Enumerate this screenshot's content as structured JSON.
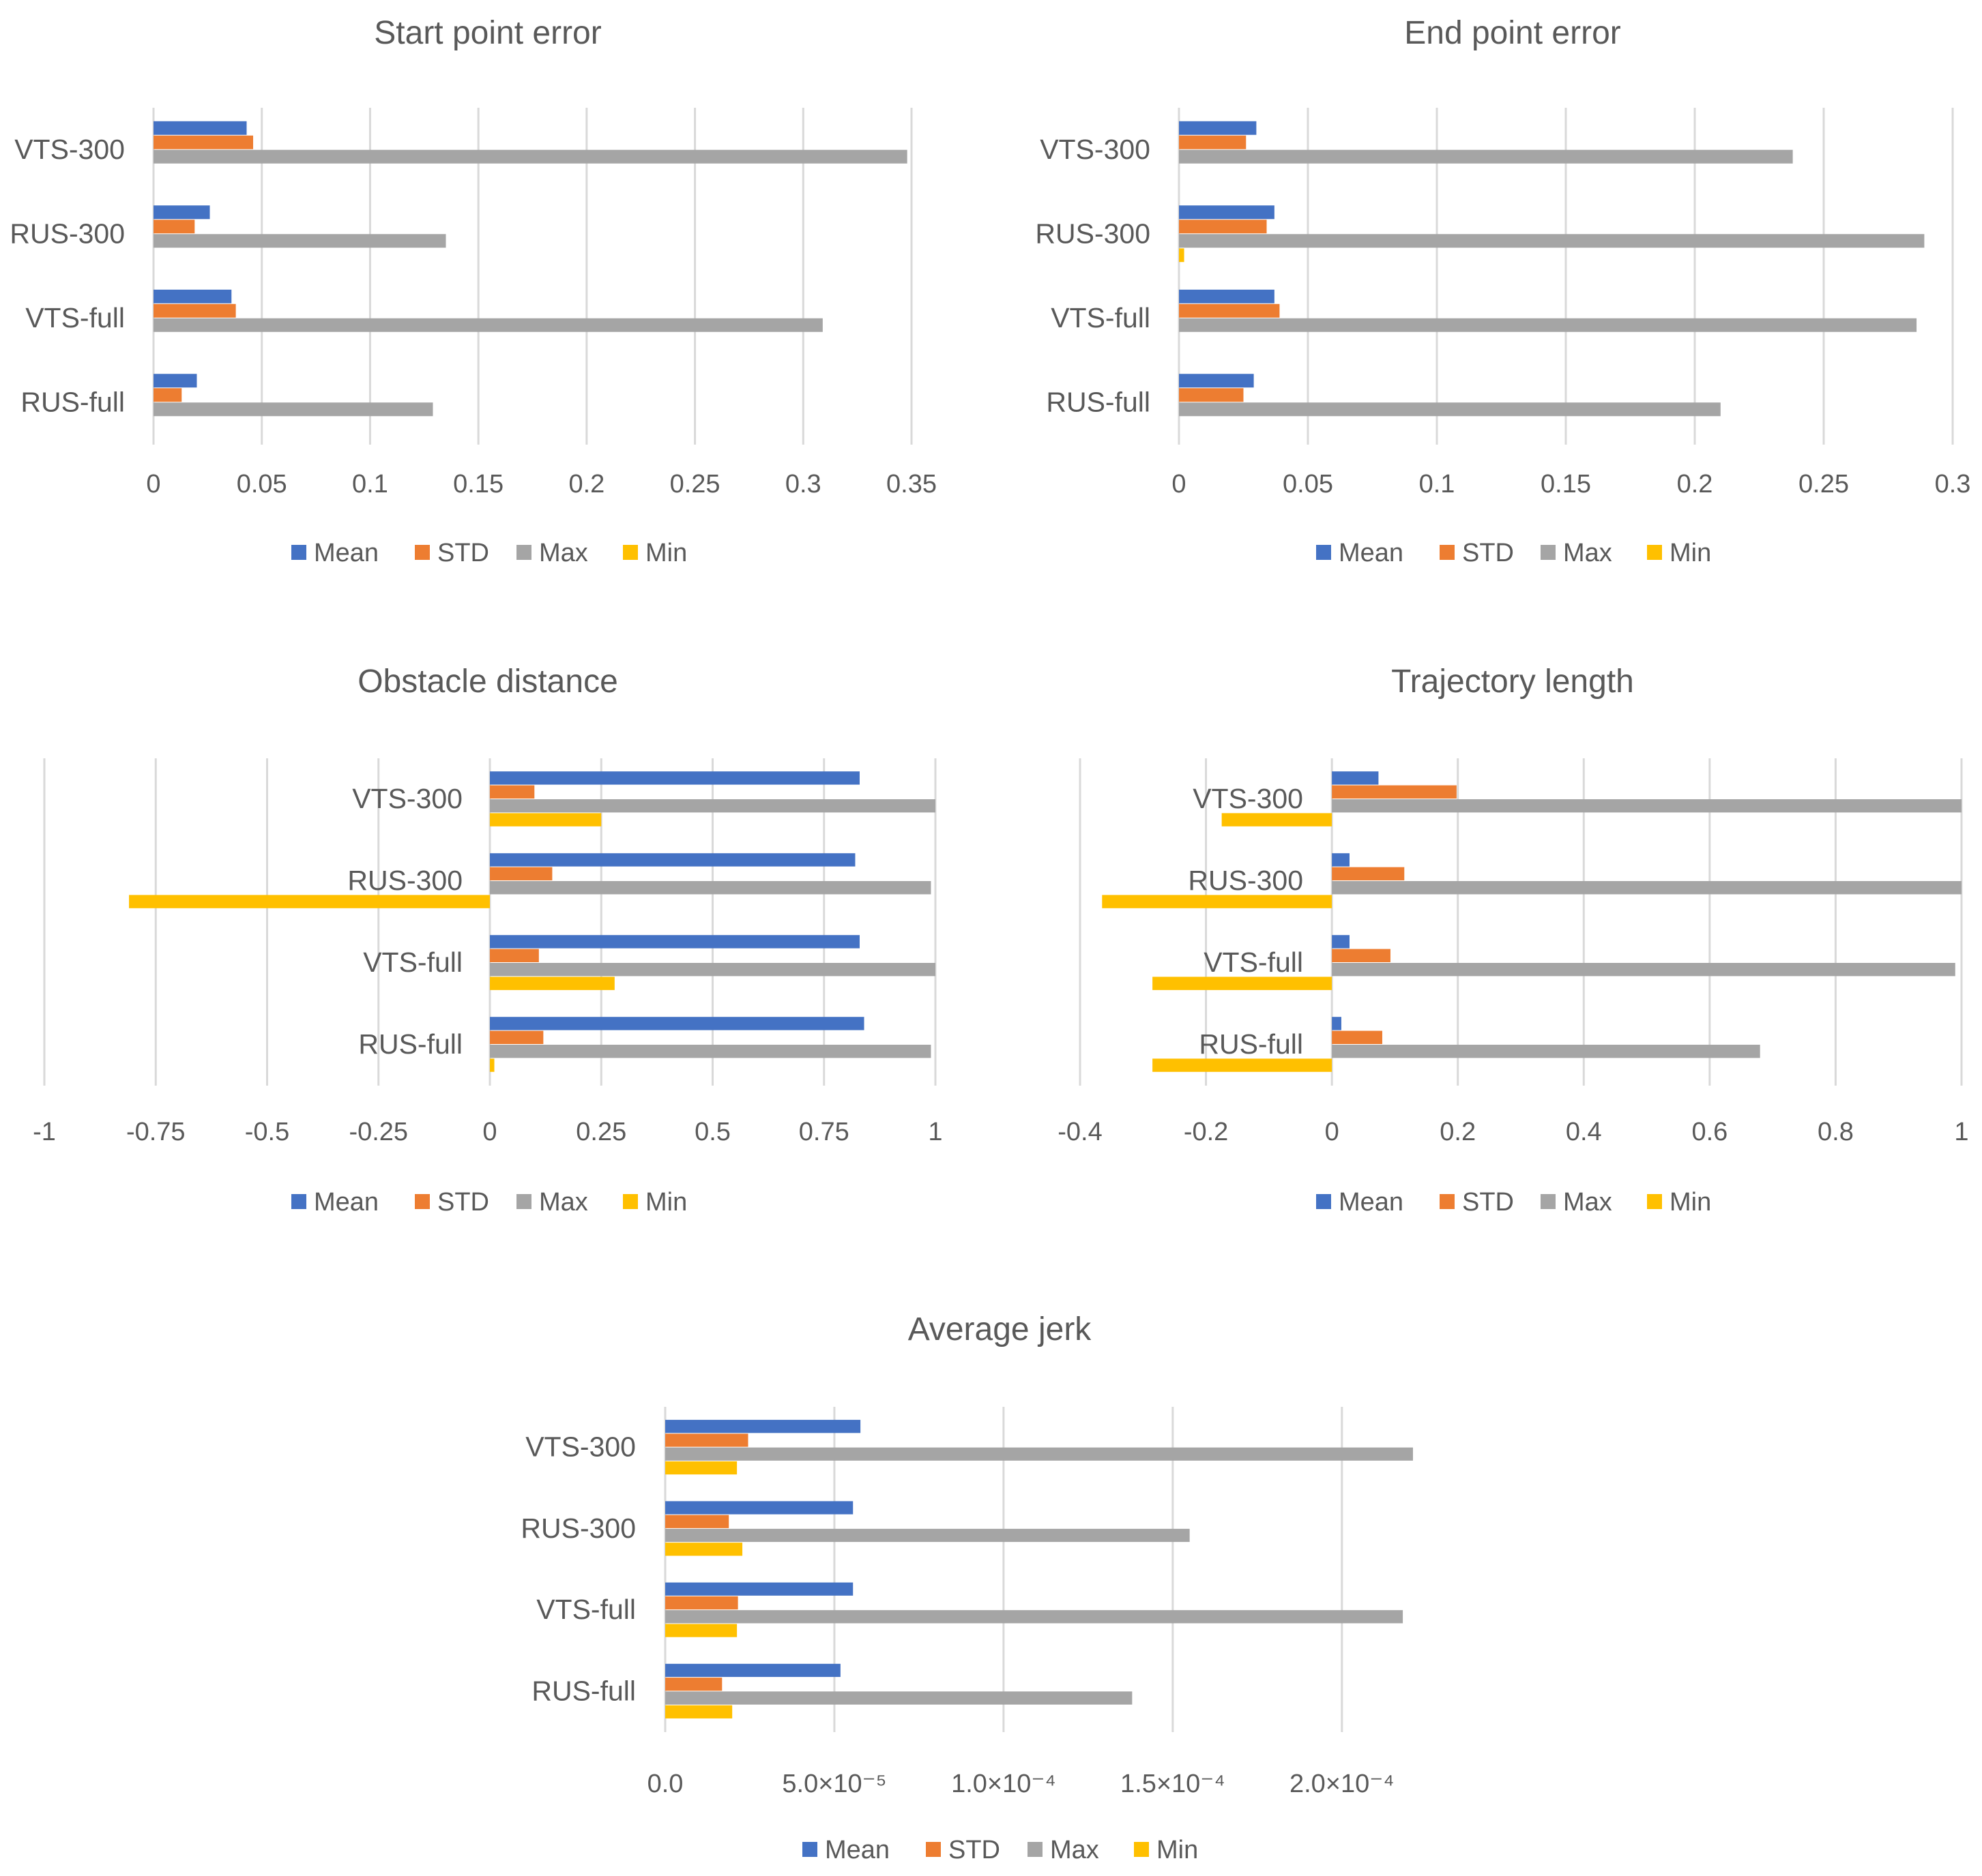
{
  "colors": {
    "Mean": "#4472C4",
    "STD": "#ED7D31",
    "Max": "#A5A5A5",
    "Min": "#FFC000",
    "grid": "#D9D9D9",
    "text": "#595959"
  },
  "legend": [
    "Mean",
    "STD",
    "Max",
    "Min"
  ],
  "chart_data": [
    {
      "type": "bar",
      "orientation": "horizontal",
      "title": "Start point error",
      "categories": [
        "VTS-300",
        "RUS-300",
        "VTS-full",
        "RUS-full"
      ],
      "xlim": [
        0,
        0.35
      ],
      "ticks": [
        0,
        0.05,
        0.1,
        0.15,
        0.2,
        0.25,
        0.3,
        0.35
      ],
      "tick_labels": [
        "0",
        "0.05",
        "0.1",
        "0.15",
        "0.2",
        "0.25",
        "0.3",
        "0.35"
      ],
      "series": [
        {
          "name": "Mean",
          "values": [
            0.043,
            0.026,
            0.036,
            0.02
          ]
        },
        {
          "name": "STD",
          "values": [
            0.046,
            0.019,
            0.038,
            0.013
          ]
        },
        {
          "name": "Max",
          "values": [
            0.348,
            0.135,
            0.309,
            0.129
          ]
        },
        {
          "name": "Min",
          "values": [
            0,
            0,
            0,
            0
          ]
        }
      ],
      "legend_position": "bottom",
      "grid": true
    },
    {
      "type": "bar",
      "orientation": "horizontal",
      "title": "End point error",
      "categories": [
        "VTS-300",
        "RUS-300",
        "VTS-full",
        "RUS-full"
      ],
      "xlim": [
        0,
        0.3
      ],
      "ticks": [
        0,
        0.05,
        0.1,
        0.15,
        0.2,
        0.25,
        0.3
      ],
      "tick_labels": [
        "0",
        "0.05",
        "0.1",
        "0.15",
        "0.2",
        "0.25",
        "0.3"
      ],
      "series": [
        {
          "name": "Mean",
          "values": [
            0.03,
            0.037,
            0.037,
            0.029
          ]
        },
        {
          "name": "STD",
          "values": [
            0.026,
            0.034,
            0.039,
            0.025
          ]
        },
        {
          "name": "Max",
          "values": [
            0.238,
            0.289,
            0.286,
            0.21
          ]
        },
        {
          "name": "Min",
          "values": [
            0,
            0.002,
            0,
            0
          ]
        }
      ],
      "legend_position": "bottom",
      "grid": true
    },
    {
      "type": "bar",
      "orientation": "horizontal",
      "title": "Obstacle distance",
      "categories": [
        "VTS-300",
        "RUS-300",
        "VTS-full",
        "RUS-full"
      ],
      "xlim": [
        -1,
        1
      ],
      "ticks": [
        -1,
        -0.75,
        -0.5,
        -0.25,
        0,
        0.25,
        0.5,
        0.75,
        1
      ],
      "tick_labels": [
        "-1",
        "-0.75",
        "-0.5",
        "-0.25",
        "0",
        "0.25",
        "0.5",
        "0.75",
        "1"
      ],
      "series": [
        {
          "name": "Mean",
          "values": [
            0.83,
            0.82,
            0.83,
            0.84
          ]
        },
        {
          "name": "STD",
          "values": [
            0.1,
            0.14,
            0.11,
            0.12
          ]
        },
        {
          "name": "Max",
          "values": [
            1.0,
            0.99,
            1.0,
            0.99
          ]
        },
        {
          "name": "Min",
          "values": [
            0.25,
            -0.81,
            0.28,
            0.01
          ]
        }
      ],
      "legend_position": "bottom",
      "grid": true
    },
    {
      "type": "bar",
      "orientation": "horizontal",
      "title": "Trajectory length",
      "categories": [
        "VTS-300",
        "RUS-300",
        "VTS-full",
        "RUS-full"
      ],
      "xlim": [
        -0.4,
        1
      ],
      "ticks": [
        -0.4,
        -0.2,
        0,
        0.2,
        0.4,
        0.6,
        0.8,
        1
      ],
      "tick_labels": [
        "-0.4",
        "-0.2",
        "0",
        "0.2",
        "0.4",
        "0.6",
        "0.8",
        "1"
      ],
      "series": [
        {
          "name": "Mean",
          "values": [
            0.074,
            0.028,
            0.028,
            0.015
          ]
        },
        {
          "name": "STD",
          "values": [
            0.198,
            0.115,
            0.093,
            0.08
          ]
        },
        {
          "name": "Max",
          "values": [
            1.0,
            1.0,
            0.99,
            0.68
          ]
        },
        {
          "name": "Min",
          "values": [
            -0.175,
            -0.365,
            -0.285,
            -0.285
          ]
        }
      ],
      "legend_position": "bottom",
      "grid": true
    },
    {
      "type": "bar",
      "orientation": "horizontal",
      "title": "Average jerk",
      "categories": [
        "VTS-300",
        "RUS-300",
        "VTS-full",
        "RUS-full"
      ],
      "xlim": [
        0,
        0.00022
      ],
      "ticks": [
        0,
        5e-05,
        0.0001,
        0.00015,
        0.0002
      ],
      "tick_labels": [
        "0.0",
        "5.0×10⁻⁵",
        "1.0×10⁻⁴",
        "1.5×10⁻⁴",
        "2.0×10⁻⁴"
      ],
      "series": [
        {
          "name": "Mean",
          "values": [
            5.77e-05,
            5.55e-05,
            5.55e-05,
            5.18e-05
          ]
        },
        {
          "name": "STD",
          "values": [
            2.45e-05,
            1.88e-05,
            2.15e-05,
            1.68e-05
          ]
        },
        {
          "name": "Max",
          "values": [
            0.000221,
            0.000155,
            0.000218,
            0.000138
          ]
        },
        {
          "name": "Min",
          "values": [
            2.12e-05,
            2.28e-05,
            2.12e-05,
            1.98e-05
          ]
        }
      ],
      "legend_position": "bottom",
      "grid": true
    }
  ]
}
